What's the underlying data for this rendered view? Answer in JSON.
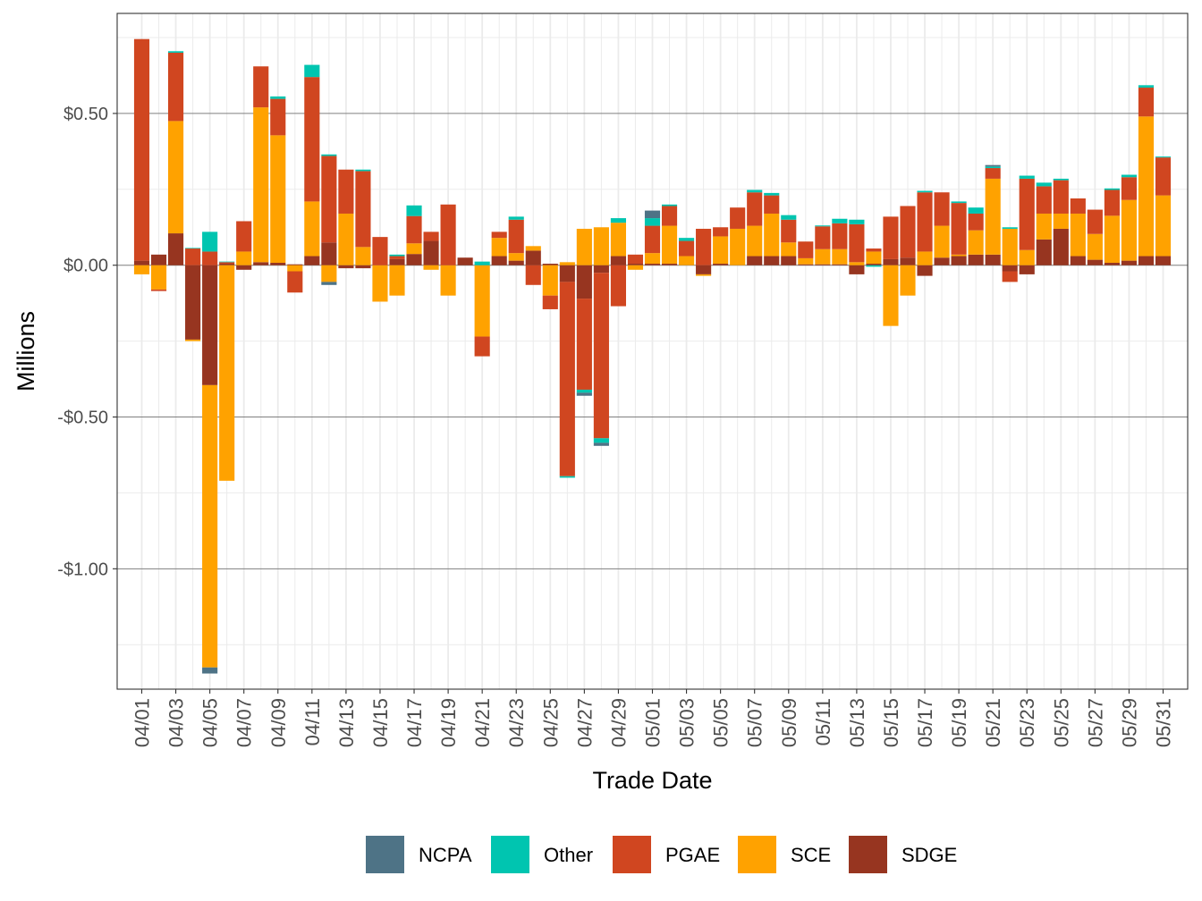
{
  "chart_data": {
    "type": "bar",
    "stacked": true,
    "xlabel": "Trade Date",
    "ylabel": "Millions",
    "ylim": [
      -1.3965,
      0.8295
    ],
    "y_ticks": [
      {
        "value": 0.5,
        "label": "$0.50"
      },
      {
        "value": 0.0,
        "label": "$0.00"
      },
      {
        "value": -0.5,
        "label": "-$0.50"
      },
      {
        "value": -1.0,
        "label": "-$1.00"
      }
    ],
    "grid": true,
    "legend": "bottom",
    "dates": [
      "04/01",
      "04/02",
      "04/03",
      "04/04",
      "04/05",
      "04/06",
      "04/07",
      "04/08",
      "04/09",
      "04/10",
      "04/11",
      "04/12",
      "04/13",
      "04/14",
      "04/15",
      "04/16",
      "04/17",
      "04/18",
      "04/19",
      "04/20",
      "04/21",
      "04/22",
      "04/23",
      "04/24",
      "04/25",
      "04/26",
      "04/27",
      "04/28",
      "04/29",
      "04/30",
      "05/01",
      "05/02",
      "05/03",
      "05/04",
      "05/05",
      "05/06",
      "05/07",
      "05/08",
      "05/09",
      "05/10",
      "05/11",
      "05/12",
      "05/13",
      "05/14",
      "05/15",
      "05/16",
      "05/17",
      "05/18",
      "05/19",
      "05/20",
      "05/21",
      "05/22",
      "05/23",
      "05/24",
      "05/25",
      "05/26",
      "05/27",
      "05/28",
      "05/29",
      "05/30",
      "05/31"
    ],
    "x_tick_labels": [
      "04/01",
      "04/03",
      "04/05",
      "04/07",
      "04/09",
      "04/11",
      "04/13",
      "04/15",
      "04/17",
      "04/19",
      "04/21",
      "04/23",
      "04/25",
      "04/27",
      "04/29",
      "05/01",
      "05/03",
      "05/05",
      "05/07",
      "05/09",
      "05/11",
      "05/13",
      "05/15",
      "05/17",
      "05/19",
      "05/21",
      "05/23",
      "05/25",
      "05/27",
      "05/29",
      "05/31"
    ],
    "stack_order": [
      "SDGE",
      "SCE",
      "PGAE",
      "Other",
      "NCPA"
    ],
    "series": [
      {
        "name": "NCPA",
        "color": "#4E7386",
        "values": [
          0,
          0,
          0,
          0,
          -0.02,
          0,
          0,
          0,
          0,
          0,
          0,
          -0.01,
          0,
          0,
          0,
          0,
          0,
          0,
          0,
          0,
          0,
          0,
          0,
          0,
          0,
          0,
          -0.01,
          -0.01,
          0,
          0,
          0.025,
          0,
          0,
          0,
          0,
          0,
          0,
          0,
          0,
          0,
          0,
          0,
          0,
          0,
          0,
          0,
          0,
          0,
          0,
          0,
          0.005,
          0,
          0,
          0,
          0,
          0,
          0,
          0,
          0,
          0,
          0
        ]
      },
      {
        "name": "Other",
        "color": "#00C5B0",
        "values": [
          0,
          0,
          0.005,
          0.002,
          0.065,
          0.002,
          0,
          0,
          0.008,
          0,
          0.04,
          0.005,
          0,
          0.005,
          0,
          0.005,
          0.035,
          0,
          0,
          0,
          0.012,
          0,
          0.01,
          0,
          0,
          -0.005,
          -0.01,
          -0.015,
          0.015,
          0,
          0.025,
          0.005,
          0.01,
          0,
          0,
          0,
          0.008,
          0.008,
          0.015,
          0,
          0.003,
          0.015,
          0.015,
          -0.005,
          0,
          0,
          0.005,
          0,
          0.005,
          0.02,
          0.005,
          0.005,
          0.01,
          0.012,
          0.005,
          0,
          0,
          0.005,
          0.008,
          0.008,
          0.003
        ]
      },
      {
        "name": "PGAE",
        "color": "#D04620",
        "values": [
          0.73,
          -0.005,
          0.225,
          0.055,
          0.045,
          0.005,
          0.1,
          0.135,
          0.12,
          -0.07,
          0.41,
          0.285,
          0.145,
          0.25,
          0.093,
          0.01,
          0.09,
          0.03,
          0.2,
          0,
          -0.065,
          0.02,
          0.11,
          -0.065,
          -0.045,
          -0.64,
          -0.3,
          -0.545,
          -0.135,
          0.03,
          0.09,
          0.065,
          0.05,
          0.12,
          0.03,
          0.07,
          0.11,
          0.06,
          0.075,
          0.055,
          0.075,
          0.085,
          0.125,
          0.01,
          0.14,
          0.17,
          0.195,
          0.11,
          0.17,
          0.055,
          0.035,
          -0.035,
          0.235,
          0.09,
          0.11,
          0.05,
          0.08,
          0.085,
          0.075,
          0.095,
          0.125
        ]
      },
      {
        "name": "SCE",
        "color": "#FFA200",
        "values": [
          -0.03,
          -0.08,
          0.37,
          -0.005,
          -0.93,
          -0.71,
          0.045,
          0.51,
          0.42,
          -0.02,
          0.18,
          -0.055,
          0.17,
          0.06,
          -0.12,
          -0.1,
          0.035,
          -0.015,
          -0.1,
          0,
          -0.235,
          0.06,
          0.025,
          0.015,
          -0.1,
          0.01,
          0.12,
          0.125,
          0.11,
          -0.015,
          0.035,
          0.125,
          0.03,
          -0.005,
          0.09,
          0.12,
          0.1,
          0.14,
          0.045,
          0.02,
          0.05,
          0.05,
          0.01,
          0.04,
          -0.2,
          -0.1,
          0.045,
          0.105,
          0.005,
          0.08,
          0.25,
          0.12,
          0.05,
          0.085,
          0.05,
          0.14,
          0.085,
          0.155,
          0.2,
          0.46,
          0.2
        ]
      },
      {
        "name": "SDGE",
        "color": "#973520",
        "values": [
          0.015,
          0.035,
          0.105,
          -0.245,
          -0.395,
          0.005,
          -0.015,
          0.01,
          0.008,
          0.003,
          0.03,
          0.075,
          -0.01,
          -0.01,
          0,
          0.02,
          0.037,
          0.08,
          0,
          0.025,
          0,
          0.03,
          0.015,
          0.048,
          0.005,
          -0.055,
          -0.11,
          -0.025,
          0.03,
          0.005,
          0.005,
          0.005,
          0,
          -0.03,
          0.005,
          0,
          0.03,
          0.03,
          0.03,
          0.003,
          0.003,
          0.003,
          -0.03,
          0.005,
          0.02,
          0.025,
          -0.035,
          0.025,
          0.03,
          0.035,
          0.035,
          -0.02,
          -0.03,
          0.085,
          0.12,
          0.03,
          0.018,
          0.008,
          0.015,
          0.03,
          0.03
        ]
      }
    ]
  }
}
